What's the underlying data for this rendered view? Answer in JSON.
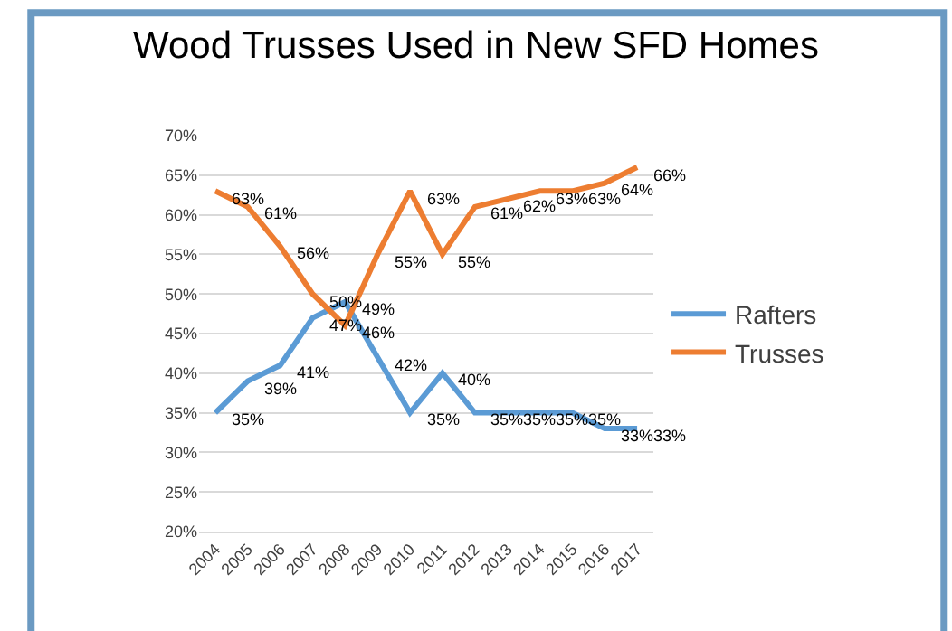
{
  "chart_data": {
    "type": "line",
    "title": "Wood Trusses Used in New SFD Homes",
    "categories": [
      "2004",
      "2005",
      "2006",
      "2007",
      "2008",
      "2009",
      "2010",
      "2011",
      "2012",
      "2013",
      "2014",
      "2015",
      "2016",
      "2017"
    ],
    "series": [
      {
        "name": "Rafters",
        "color": "#5b9bd5",
        "values": [
          35,
          39,
          41,
          47,
          49,
          42,
          35,
          40,
          35,
          35,
          35,
          35,
          33,
          33
        ],
        "value_labels": [
          "35%",
          "39%",
          "41%",
          "47%",
          "49%",
          "42%",
          "35%",
          "40%",
          "35%",
          "35%",
          "35%",
          "35%",
          "33%",
          "33%"
        ]
      },
      {
        "name": "Trusses",
        "color": "#ed7d31",
        "values": [
          63,
          61,
          56,
          50,
          46,
          55,
          63,
          55,
          61,
          62,
          63,
          63,
          64,
          66
        ],
        "value_labels": [
          "63%",
          "61%",
          "56%",
          "50%",
          "46%",
          "55%",
          "63%",
          "55%",
          "61%",
          "62%",
          "63%",
          "63%",
          "64%",
          "66%"
        ]
      }
    ],
    "ylim": [
      20,
      70
    ],
    "yticks": [
      {
        "value": 20,
        "label": "20%"
      },
      {
        "value": 25,
        "label": "25%"
      },
      {
        "value": 30,
        "label": "30%"
      },
      {
        "value": 35,
        "label": "35%"
      },
      {
        "value": 40,
        "label": "40%"
      },
      {
        "value": 45,
        "label": "45%"
      },
      {
        "value": 50,
        "label": "50%"
      },
      {
        "value": 55,
        "label": "55%"
      },
      {
        "value": 60,
        "label": "60%"
      },
      {
        "value": 65,
        "label": "65%"
      },
      {
        "value": 70,
        "label": "70%"
      }
    ],
    "grid": "y",
    "legend": "right"
  }
}
